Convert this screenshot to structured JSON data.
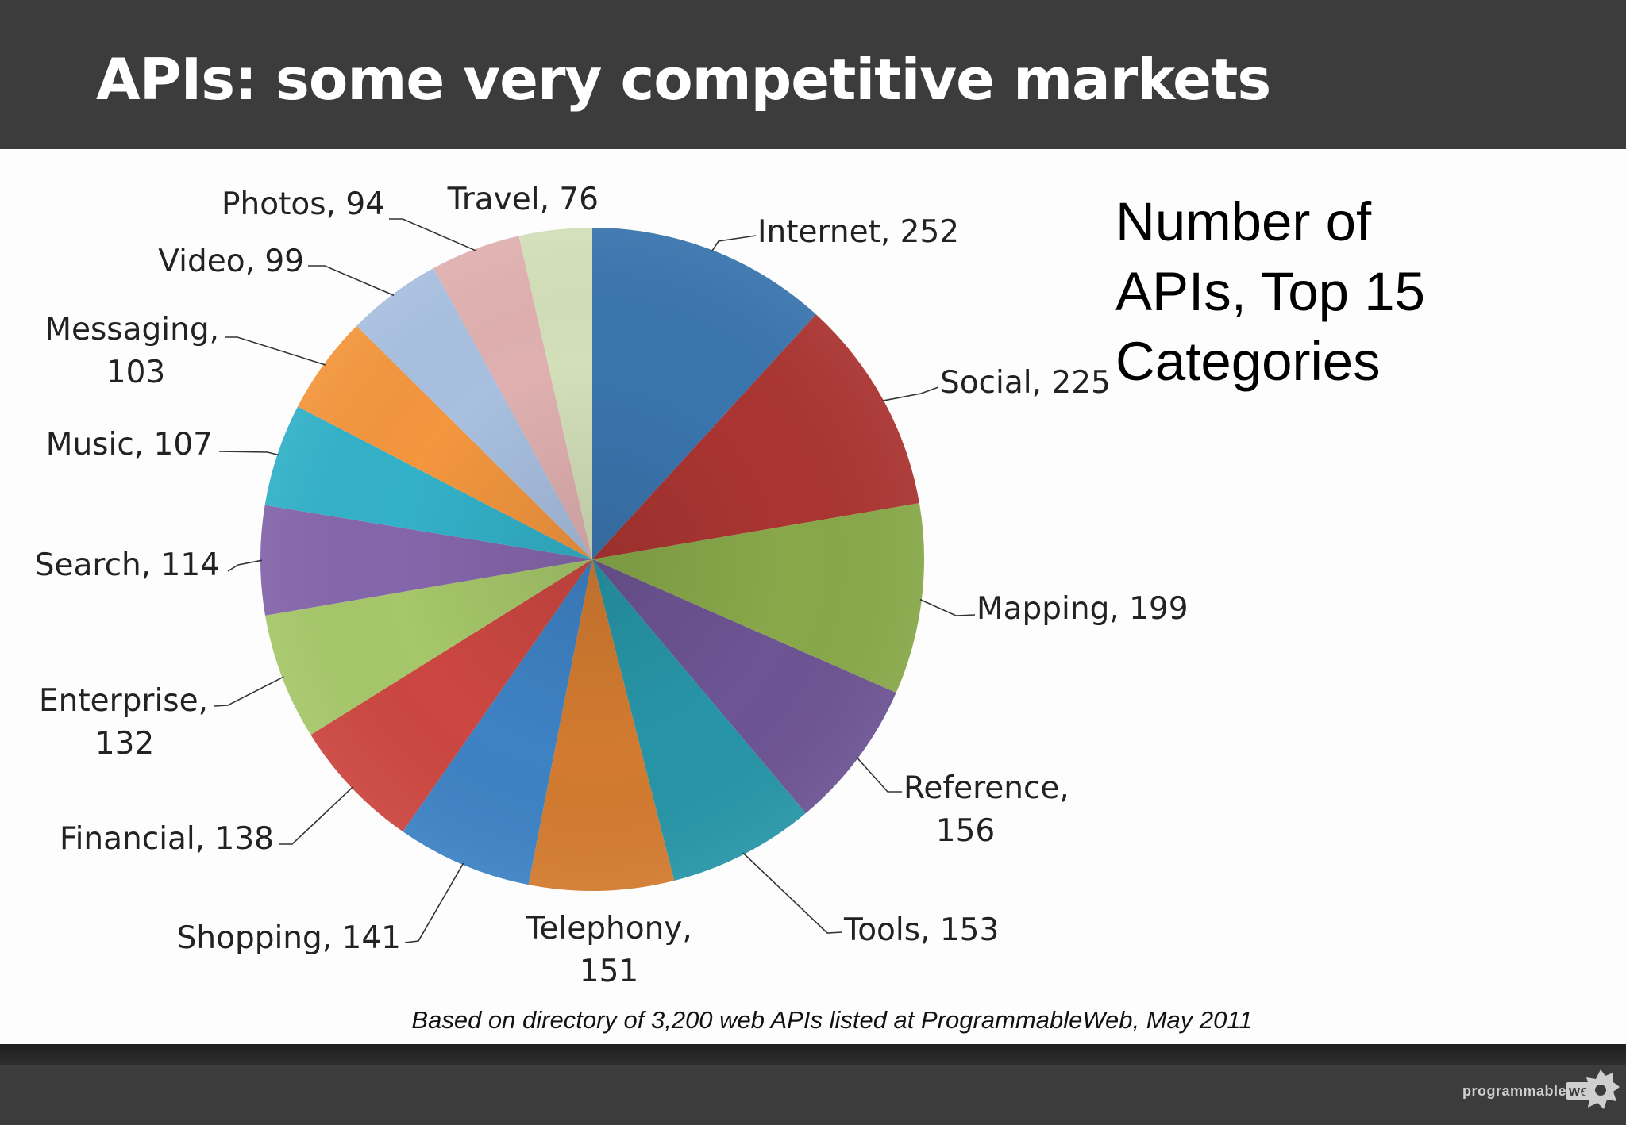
{
  "slide": {
    "title": "APIs: some very competitive markets",
    "side_title_lines": [
      "Number of",
      "APIs, Top 15",
      "Categories"
    ],
    "source_note": "Based on directory of 3,200 web APIs listed at ProgrammableWeb, May 2011",
    "logo": {
      "text": "programmable",
      "badge": "web"
    }
  },
  "chart_data": {
    "type": "pie",
    "title": "Number of APIs, Top 15 Categories",
    "slices": [
      {
        "name": "Internet",
        "value": 252,
        "color": "#3a75ae"
      },
      {
        "name": "Social",
        "value": 225,
        "color": "#aa3532"
      },
      {
        "name": "Mapping",
        "value": 199,
        "color": "#88a84a"
      },
      {
        "name": "Reference",
        "value": 156,
        "color": "#6d5493"
      },
      {
        "name": "Tools",
        "value": 153,
        "color": "#2795a7"
      },
      {
        "name": "Telephony",
        "value": 151,
        "color": "#d27b30"
      },
      {
        "name": "Shopping",
        "value": 141,
        "color": "#3e82c4"
      },
      {
        "name": "Financial",
        "value": 138,
        "color": "#cc4741"
      },
      {
        "name": "Enterprise",
        "value": 132,
        "color": "#a6c76a"
      },
      {
        "name": "Search",
        "value": 114,
        "color": "#8566ab"
      },
      {
        "name": "Music",
        "value": 107,
        "color": "#33b1c8"
      },
      {
        "name": "Messaging",
        "value": 103,
        "color": "#f3963e"
      },
      {
        "name": "Video",
        "value": 99,
        "color": "#a8bfdf"
      },
      {
        "name": "Photos",
        "value": 94,
        "color": "#e0b0b0"
      },
      {
        "name": "Travel",
        "value": 76,
        "color": "#d2dfb8"
      }
    ],
    "labels": [
      {
        "lines": [
          "Internet, 252"
        ]
      },
      {
        "lines": [
          "Social, 225"
        ]
      },
      {
        "lines": [
          "Mapping, 199"
        ]
      },
      {
        "lines": [
          "Reference,",
          "156"
        ]
      },
      {
        "lines": [
          "Tools, 153"
        ]
      },
      {
        "lines": [
          "Telephony,",
          "151"
        ]
      },
      {
        "lines": [
          "Shopping, 141"
        ]
      },
      {
        "lines": [
          "Financial, 138"
        ]
      },
      {
        "lines": [
          "Enterprise,",
          "132"
        ]
      },
      {
        "lines": [
          "Search, 114"
        ]
      },
      {
        "lines": [
          "Music, 107"
        ]
      },
      {
        "lines": [
          "Messaging,",
          "103"
        ]
      },
      {
        "lines": [
          "Video, 99"
        ]
      },
      {
        "lines": [
          "Photos, 94"
        ]
      },
      {
        "lines": [
          "Travel, 76"
        ]
      }
    ],
    "start_angle_deg": 0,
    "direction": "clockwise"
  }
}
